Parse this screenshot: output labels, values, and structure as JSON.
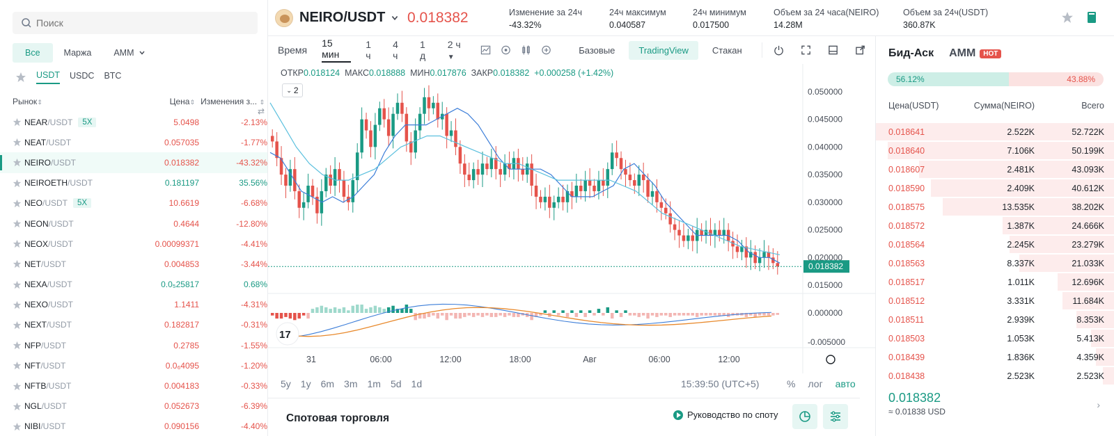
{
  "search": {
    "placeholder": "Поиск"
  },
  "filters": {
    "all": "Все",
    "margin": "Маржа",
    "amm": "AMM"
  },
  "quotes": [
    "USDT",
    "USDC",
    "BTC"
  ],
  "columns": {
    "market": "Рынок",
    "price": "Цена",
    "change": "Изменения з..."
  },
  "markets": [
    {
      "base": "NEAR",
      "quote": "/USDT",
      "lev": "5X",
      "price": "5.0498",
      "change": "-2.13%",
      "dir": "down"
    },
    {
      "base": "NEAT",
      "quote": "/USDT",
      "lev": "",
      "price": "0.057035",
      "change": "-1.77%",
      "dir": "down"
    },
    {
      "base": "NEIRO",
      "quote": "/USDT",
      "lev": "",
      "price": "0.018382",
      "change": "-43.32%",
      "dir": "down",
      "selected": true
    },
    {
      "base": "NEIROETH",
      "quote": "/USDT",
      "lev": "",
      "price": "0.181197",
      "change": "35.56%",
      "dir": "up"
    },
    {
      "base": "NEO",
      "quote": "/USDT",
      "lev": "5X",
      "price": "10.6619",
      "change": "-6.68%",
      "dir": "down"
    },
    {
      "base": "NEON",
      "quote": "/USDT",
      "lev": "",
      "price": "0.4644",
      "change": "-12.80%",
      "dir": "down"
    },
    {
      "base": "NEOX",
      "quote": "/USDT",
      "lev": "",
      "price": "0.00099371",
      "change": "-4.41%",
      "dir": "down"
    },
    {
      "base": "NET",
      "quote": "/USDT",
      "lev": "",
      "price": "0.004853",
      "change": "-3.44%",
      "dir": "down"
    },
    {
      "base": "NEXA",
      "quote": "/USDT",
      "lev": "",
      "price": "0.0₅25817",
      "change": "0.68%",
      "dir": "up"
    },
    {
      "base": "NEXO",
      "quote": "/USDT",
      "lev": "",
      "price": "1.1411",
      "change": "-4.31%",
      "dir": "down"
    },
    {
      "base": "NEXT",
      "quote": "/USDT",
      "lev": "",
      "price": "0.182817",
      "change": "-0.31%",
      "dir": "down"
    },
    {
      "base": "NFP",
      "quote": "/USDT",
      "lev": "",
      "price": "0.2785",
      "change": "-1.55%",
      "dir": "down"
    },
    {
      "base": "NFT",
      "quote": "/USDT",
      "lev": "",
      "price": "0.0₆4095",
      "change": "-1.20%",
      "dir": "down"
    },
    {
      "base": "NFTB",
      "quote": "/USDT",
      "lev": "",
      "price": "0.004183",
      "change": "-0.33%",
      "dir": "down"
    },
    {
      "base": "NGL",
      "quote": "/USDT",
      "lev": "",
      "price": "0.052673",
      "change": "-6.39%",
      "dir": "down"
    },
    {
      "base": "NIBI",
      "quote": "/USDT",
      "lev": "",
      "price": "0.090156",
      "change": "-4.40%",
      "dir": "down"
    }
  ],
  "header": {
    "symbol": "NEIRO/USDT",
    "last_price": "0.018382",
    "stats": [
      {
        "label": "Изменение за 24ч",
        "value": "-43.32%",
        "color": "#e5534b"
      },
      {
        "label": "24ч максимум",
        "value": "0.040587",
        "color": "#1e2329"
      },
      {
        "label": "24ч минимум",
        "value": "0.017500",
        "color": "#1e2329"
      },
      {
        "label": "Объем за 24 часа(NEIRO)",
        "value": "14.28M",
        "color": "#1e2329"
      },
      {
        "label": "Объем за 24ч(USDT)",
        "value": "360.87K",
        "color": "#1e2329"
      }
    ]
  },
  "toolbar": {
    "timeframes": [
      "Время",
      "15 мин",
      "1 ч",
      "4 ч",
      "1 д",
      "2 ч"
    ],
    "views": [
      "Базовые",
      "TradingView",
      "Стакан"
    ]
  },
  "ohlc": {
    "open_label": "ОТКР",
    "open": "0.018124",
    "high_label": "МАКС",
    "high": "0.018888",
    "low_label": "МИН",
    "low": "0.017876",
    "close_label": "ЗАКР",
    "close": "0.018382",
    "change": "+0.000258 (+1.42%)"
  },
  "legend_count": "2",
  "chart_data": {
    "type": "candlestick",
    "price_axis": [
      "0.050000",
      "0.045000",
      "0.040000",
      "0.035000",
      "0.030000",
      "0.025000",
      "0.020000",
      "0.015000"
    ],
    "ylim": [
      0.0135,
      0.0525
    ],
    "last_price_label": "0.018382",
    "last_price": 0.018382,
    "macd_axis": [
      "0.000000",
      "-0.005000"
    ],
    "time_axis": [
      "31",
      "06:00",
      "12:00",
      "18:00",
      "Авг",
      "06:00",
      "12:00"
    ],
    "closes": [
      0.041,
      0.038,
      0.035,
      0.033,
      0.036,
      0.032,
      0.029,
      0.03,
      0.033,
      0.031,
      0.028,
      0.032,
      0.035,
      0.033,
      0.036,
      0.034,
      0.031,
      0.03,
      0.034,
      0.039,
      0.045,
      0.043,
      0.04,
      0.044,
      0.047,
      0.045,
      0.042,
      0.046,
      0.048,
      0.046,
      0.041,
      0.039,
      0.043,
      0.046,
      0.049,
      0.047,
      0.048,
      0.045,
      0.046,
      0.042,
      0.043,
      0.04,
      0.037,
      0.035,
      0.034,
      0.036,
      0.035,
      0.037,
      0.036,
      0.038,
      0.036,
      0.035,
      0.037,
      0.036,
      0.038,
      0.036,
      0.035,
      0.037,
      0.033,
      0.031,
      0.03,
      0.031,
      0.029,
      0.03,
      0.031,
      0.03,
      0.032,
      0.031,
      0.033,
      0.032,
      0.034,
      0.033,
      0.032,
      0.034,
      0.033,
      0.036,
      0.039,
      0.038,
      0.036,
      0.035,
      0.034,
      0.033,
      0.035,
      0.034,
      0.031,
      0.032,
      0.03,
      0.029,
      0.028,
      0.026,
      0.025,
      0.024,
      0.023,
      0.024,
      0.023,
      0.025,
      0.024,
      0.025,
      0.024,
      0.025,
      0.024,
      0.025,
      0.023,
      0.022,
      0.021,
      0.022,
      0.02,
      0.021,
      0.019,
      0.02,
      0.021,
      0.02,
      0.019,
      0.0184
    ],
    "ma_fast": [
      0.039,
      0.038,
      0.035,
      0.032,
      0.031,
      0.03,
      0.031,
      0.03,
      0.031,
      0.033,
      0.035,
      0.039,
      0.042,
      0.044,
      0.044,
      0.044,
      0.045,
      0.046,
      0.047,
      0.046,
      0.044,
      0.041,
      0.038,
      0.036,
      0.036,
      0.036,
      0.036,
      0.035,
      0.033,
      0.031,
      0.031,
      0.031,
      0.032,
      0.033,
      0.036,
      0.037,
      0.035,
      0.033,
      0.03,
      0.028,
      0.026,
      0.024,
      0.024,
      0.024,
      0.024,
      0.023,
      0.021,
      0.02,
      0.02,
      0.019
    ],
    "ma_slow": [
      0.048,
      0.044,
      0.04,
      0.037,
      0.035,
      0.034,
      0.034,
      0.035,
      0.036,
      0.038,
      0.04,
      0.041,
      0.042,
      0.042,
      0.041,
      0.04,
      0.039,
      0.038,
      0.037,
      0.037,
      0.036,
      0.035,
      0.034,
      0.034,
      0.034,
      0.034,
      0.034,
      0.033,
      0.032,
      0.03,
      0.028,
      0.027,
      0.026,
      0.025,
      0.024,
      0.023,
      0.022,
      0.0215,
      0.021,
      0.0205
    ]
  },
  "range_buttons": [
    "5y",
    "1y",
    "6m",
    "3m",
    "1m",
    "5d",
    "1d"
  ],
  "clock": "15:39:50 (UTC+5)",
  "scale_modes": [
    "%",
    "лог",
    "авто"
  ],
  "spot": {
    "title": "Спотовая торговля",
    "guide": "Руководство по споту"
  },
  "orderbook": {
    "tab_bidask": "Бид-Аск",
    "tab_amm": "AMM",
    "hot": "HOT",
    "bid_pct": "56.12%",
    "ask_pct": "43.88%",
    "bid_fraction": 0.5612,
    "headers": {
      "price": "Цена(USDT)",
      "amount": "Сумма(NEIRO)",
      "total": "Всего"
    },
    "asks": [
      {
        "price": "0.018641",
        "amount": "2.522K",
        "total": "52.722K",
        "depth": 1.0
      },
      {
        "price": "0.018640",
        "amount": "7.106K",
        "total": "50.199K",
        "depth": 0.95
      },
      {
        "price": "0.018607",
        "amount": "2.481K",
        "total": "43.093K",
        "depth": 0.82
      },
      {
        "price": "0.018590",
        "amount": "2.409K",
        "total": "40.612K",
        "depth": 0.77
      },
      {
        "price": "0.018575",
        "amount": "13.535K",
        "total": "38.202K",
        "depth": 0.72
      },
      {
        "price": "0.018572",
        "amount": "1.387K",
        "total": "24.666K",
        "depth": 0.47
      },
      {
        "price": "0.018564",
        "amount": "2.245K",
        "total": "23.279K",
        "depth": 0.44
      },
      {
        "price": "0.018563",
        "amount": "8.337K",
        "total": "21.033K",
        "depth": 0.4
      },
      {
        "price": "0.018517",
        "amount": "1.011K",
        "total": "12.696K",
        "depth": 0.24
      },
      {
        "price": "0.018512",
        "amount": "3.331K",
        "total": "11.684K",
        "depth": 0.22
      },
      {
        "price": "0.018511",
        "amount": "2.939K",
        "total": "8.353K",
        "depth": 0.16
      },
      {
        "price": "0.018503",
        "amount": "1.053K",
        "total": "5.413K",
        "depth": 0.1
      },
      {
        "price": "0.018439",
        "amount": "1.836K",
        "total": "4.359K",
        "depth": 0.08
      },
      {
        "price": "0.018438",
        "amount": "2.523K",
        "total": "2.523K",
        "depth": 0.05
      }
    ],
    "last_price": "0.018382",
    "last_usd": "≈ 0.01838 USD"
  },
  "colors": {
    "up": "#1a9a84",
    "down": "#e5534b",
    "ma_fast": "#3b7dd8",
    "ma_slow": "#5bc0de",
    "macd": "#e8892c"
  }
}
